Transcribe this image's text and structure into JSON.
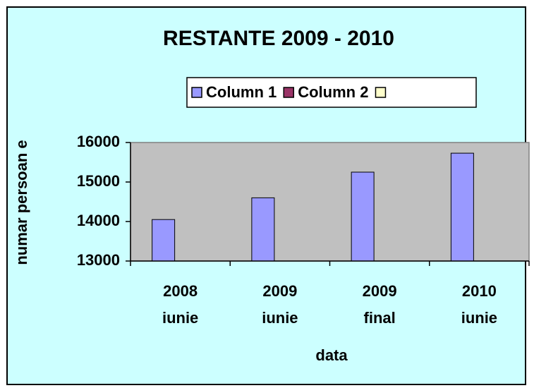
{
  "chart_data": {
    "type": "bar",
    "title": "RESTANTE 2009 - 2010",
    "x_label": "data",
    "y_label": "numar persoan e",
    "categories": [
      "2008\niunie",
      "2009\niunie",
      "2009\nfinal",
      "2010\niunie"
    ],
    "series": [
      {
        "name": "Column 1",
        "color": "#9999ff",
        "values": [
          14050,
          14600,
          15250,
          15730
        ]
      },
      {
        "name": "Column 2",
        "color": "#993366",
        "values": [
          null,
          null,
          null,
          null
        ]
      },
      {
        "name": null,
        "color": "#ffffcc",
        "values": [
          null,
          null,
          null,
          null
        ]
      }
    ],
    "ylim": [
      13000,
      16000
    ],
    "yticks": [
      13000,
      14000,
      15000,
      16000
    ],
    "grid": false,
    "background": "#ccffff",
    "plot_background": "#c0c0c0"
  }
}
